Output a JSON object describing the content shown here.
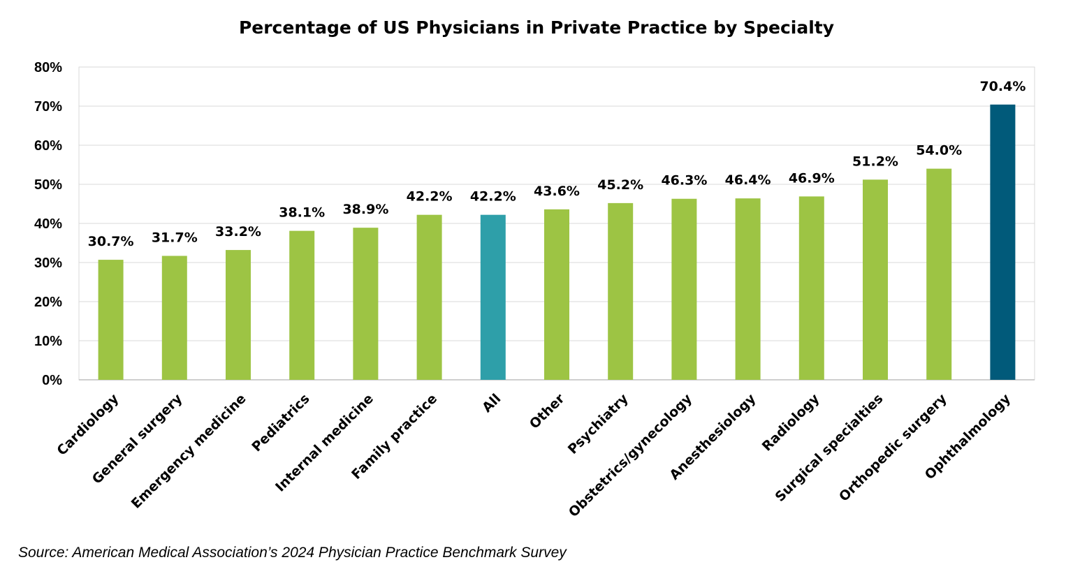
{
  "chart_data": {
    "type": "bar",
    "title": "Percentage of US Physicians in Private Practice by Specialty",
    "xlabel": "",
    "ylabel": "",
    "ylim": [
      0,
      80
    ],
    "yticks": [
      "0%",
      "10%",
      "20%",
      "30%",
      "40%",
      "50%",
      "60%",
      "70%",
      "80%"
    ],
    "grid": true,
    "categories": [
      "Cardiology",
      "General surgery",
      "Emergency medicine",
      "Pediatrics",
      "Internal medicine",
      "Family practice",
      "All",
      "Other",
      "Psychiatry",
      "Obstetrics/gynecology",
      "Anesthesiology",
      "Radiology",
      "Surgical specialties",
      "Orthopedic surgery",
      "Ophthalmology"
    ],
    "values": [
      30.7,
      31.7,
      33.2,
      38.1,
      38.9,
      42.2,
      42.2,
      43.6,
      45.2,
      46.3,
      46.4,
      46.9,
      51.2,
      54.0,
      70.4
    ],
    "data_labels": [
      "30.7%",
      "31.7%",
      "33.2%",
      "38.1%",
      "38.9%",
      "42.2%",
      "42.2%",
      "43.6%",
      "45.2%",
      "46.3%",
      "46.4%",
      "46.9%",
      "51.2%",
      "54.0%",
      "70.4%"
    ],
    "colors": {
      "default": "#9DC444",
      "highlight_all": "#2E9FA9",
      "highlight_top": "#015A7A",
      "grid": "#D9D9D9",
      "axis": "#BFBFBF"
    },
    "highlight": {
      "All": "highlight_all",
      "Ophthalmology": "highlight_top"
    }
  },
  "source": "Source: American Medical Association’s 2024 Physician Practice Benchmark Survey"
}
